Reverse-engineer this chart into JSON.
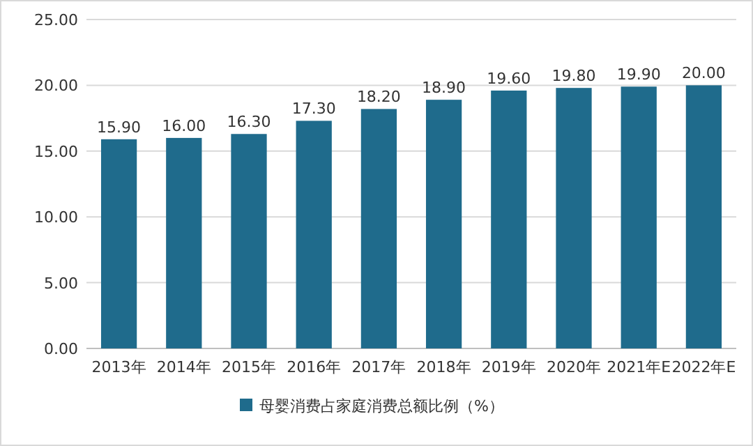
{
  "chart_data": {
    "type": "bar",
    "categories": [
      "2013年",
      "2014年",
      "2015年",
      "2016年",
      "2017年",
      "2018年",
      "2019年",
      "2020年",
      "2021年E",
      "2022年E"
    ],
    "series": [
      {
        "name": "母婴消费占家庭消费总额比例（%）",
        "color": "#1f6b8c",
        "values": [
          15.9,
          16.0,
          16.3,
          17.3,
          18.2,
          18.9,
          19.6,
          19.8,
          19.9,
          20.0
        ],
        "value_labels": [
          "15.90",
          "16.00",
          "16.30",
          "17.30",
          "18.20",
          "18.90",
          "19.60",
          "19.80",
          "19.90",
          "20.00"
        ]
      }
    ],
    "ylim": [
      0,
      25
    ],
    "yticks": [
      {
        "value": 0,
        "label": "0.00"
      },
      {
        "value": 5,
        "label": "5.00"
      },
      {
        "value": 10,
        "label": "10.00"
      },
      {
        "value": 15,
        "label": "15.00"
      },
      {
        "value": 20,
        "label": "20.00"
      },
      {
        "value": 25,
        "label": "25.00"
      }
    ],
    "grid": "y",
    "legend": "bottom"
  }
}
